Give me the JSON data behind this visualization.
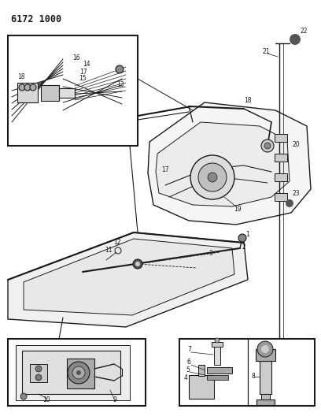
{
  "title": "6172 1000",
  "bg": "#ffffff",
  "lc": "#1a1a1a",
  "fig_w": 4.08,
  "fig_h": 5.33,
  "dpi": 100
}
